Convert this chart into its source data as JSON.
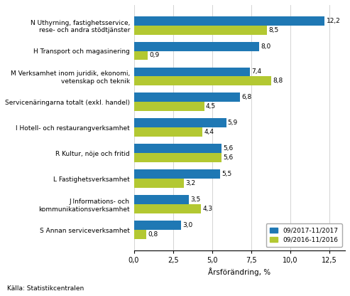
{
  "categories": [
    "N Uthyrning, fastighetsservice,\nrese- och andra stödtjänster",
    "H Transport och magasinering",
    "M Verksamhet inom juridik, ekonomi,\nvetenskap och teknik",
    "Servicenäringarna totalt (exkl. handel)",
    "I Hotell- och restaurangverksamhet",
    "R Kultur, nöje och fritid",
    "L Fastighetsverksamhet",
    "J Informations- och\nkommunikationsverksamhet",
    "S Annan serviceverksamhet"
  ],
  "values_2017": [
    12.2,
    8.0,
    7.4,
    6.8,
    5.9,
    5.6,
    5.5,
    3.5,
    3.0
  ],
  "values_2016": [
    8.5,
    0.9,
    8.8,
    4.5,
    4.4,
    5.6,
    3.2,
    4.3,
    0.8
  ],
  "color_2017": "#1f78b4",
  "color_2016": "#b3c832",
  "xlabel": "Årsförändring, %",
  "legend_2017": "09/2017-11/2017",
  "legend_2016": "09/2016-11/2016",
  "source": "Källa: Statistikcentralen",
  "xlim": [
    0,
    13.5
  ],
  "xticks": [
    0.0,
    2.5,
    5.0,
    7.5,
    10.0,
    12.5
  ],
  "xticklabels": [
    "0,0",
    "2,5",
    "5,0",
    "7,5",
    "10,0",
    "12,5"
  ],
  "bar_height": 0.36,
  "background_color": "#ffffff"
}
